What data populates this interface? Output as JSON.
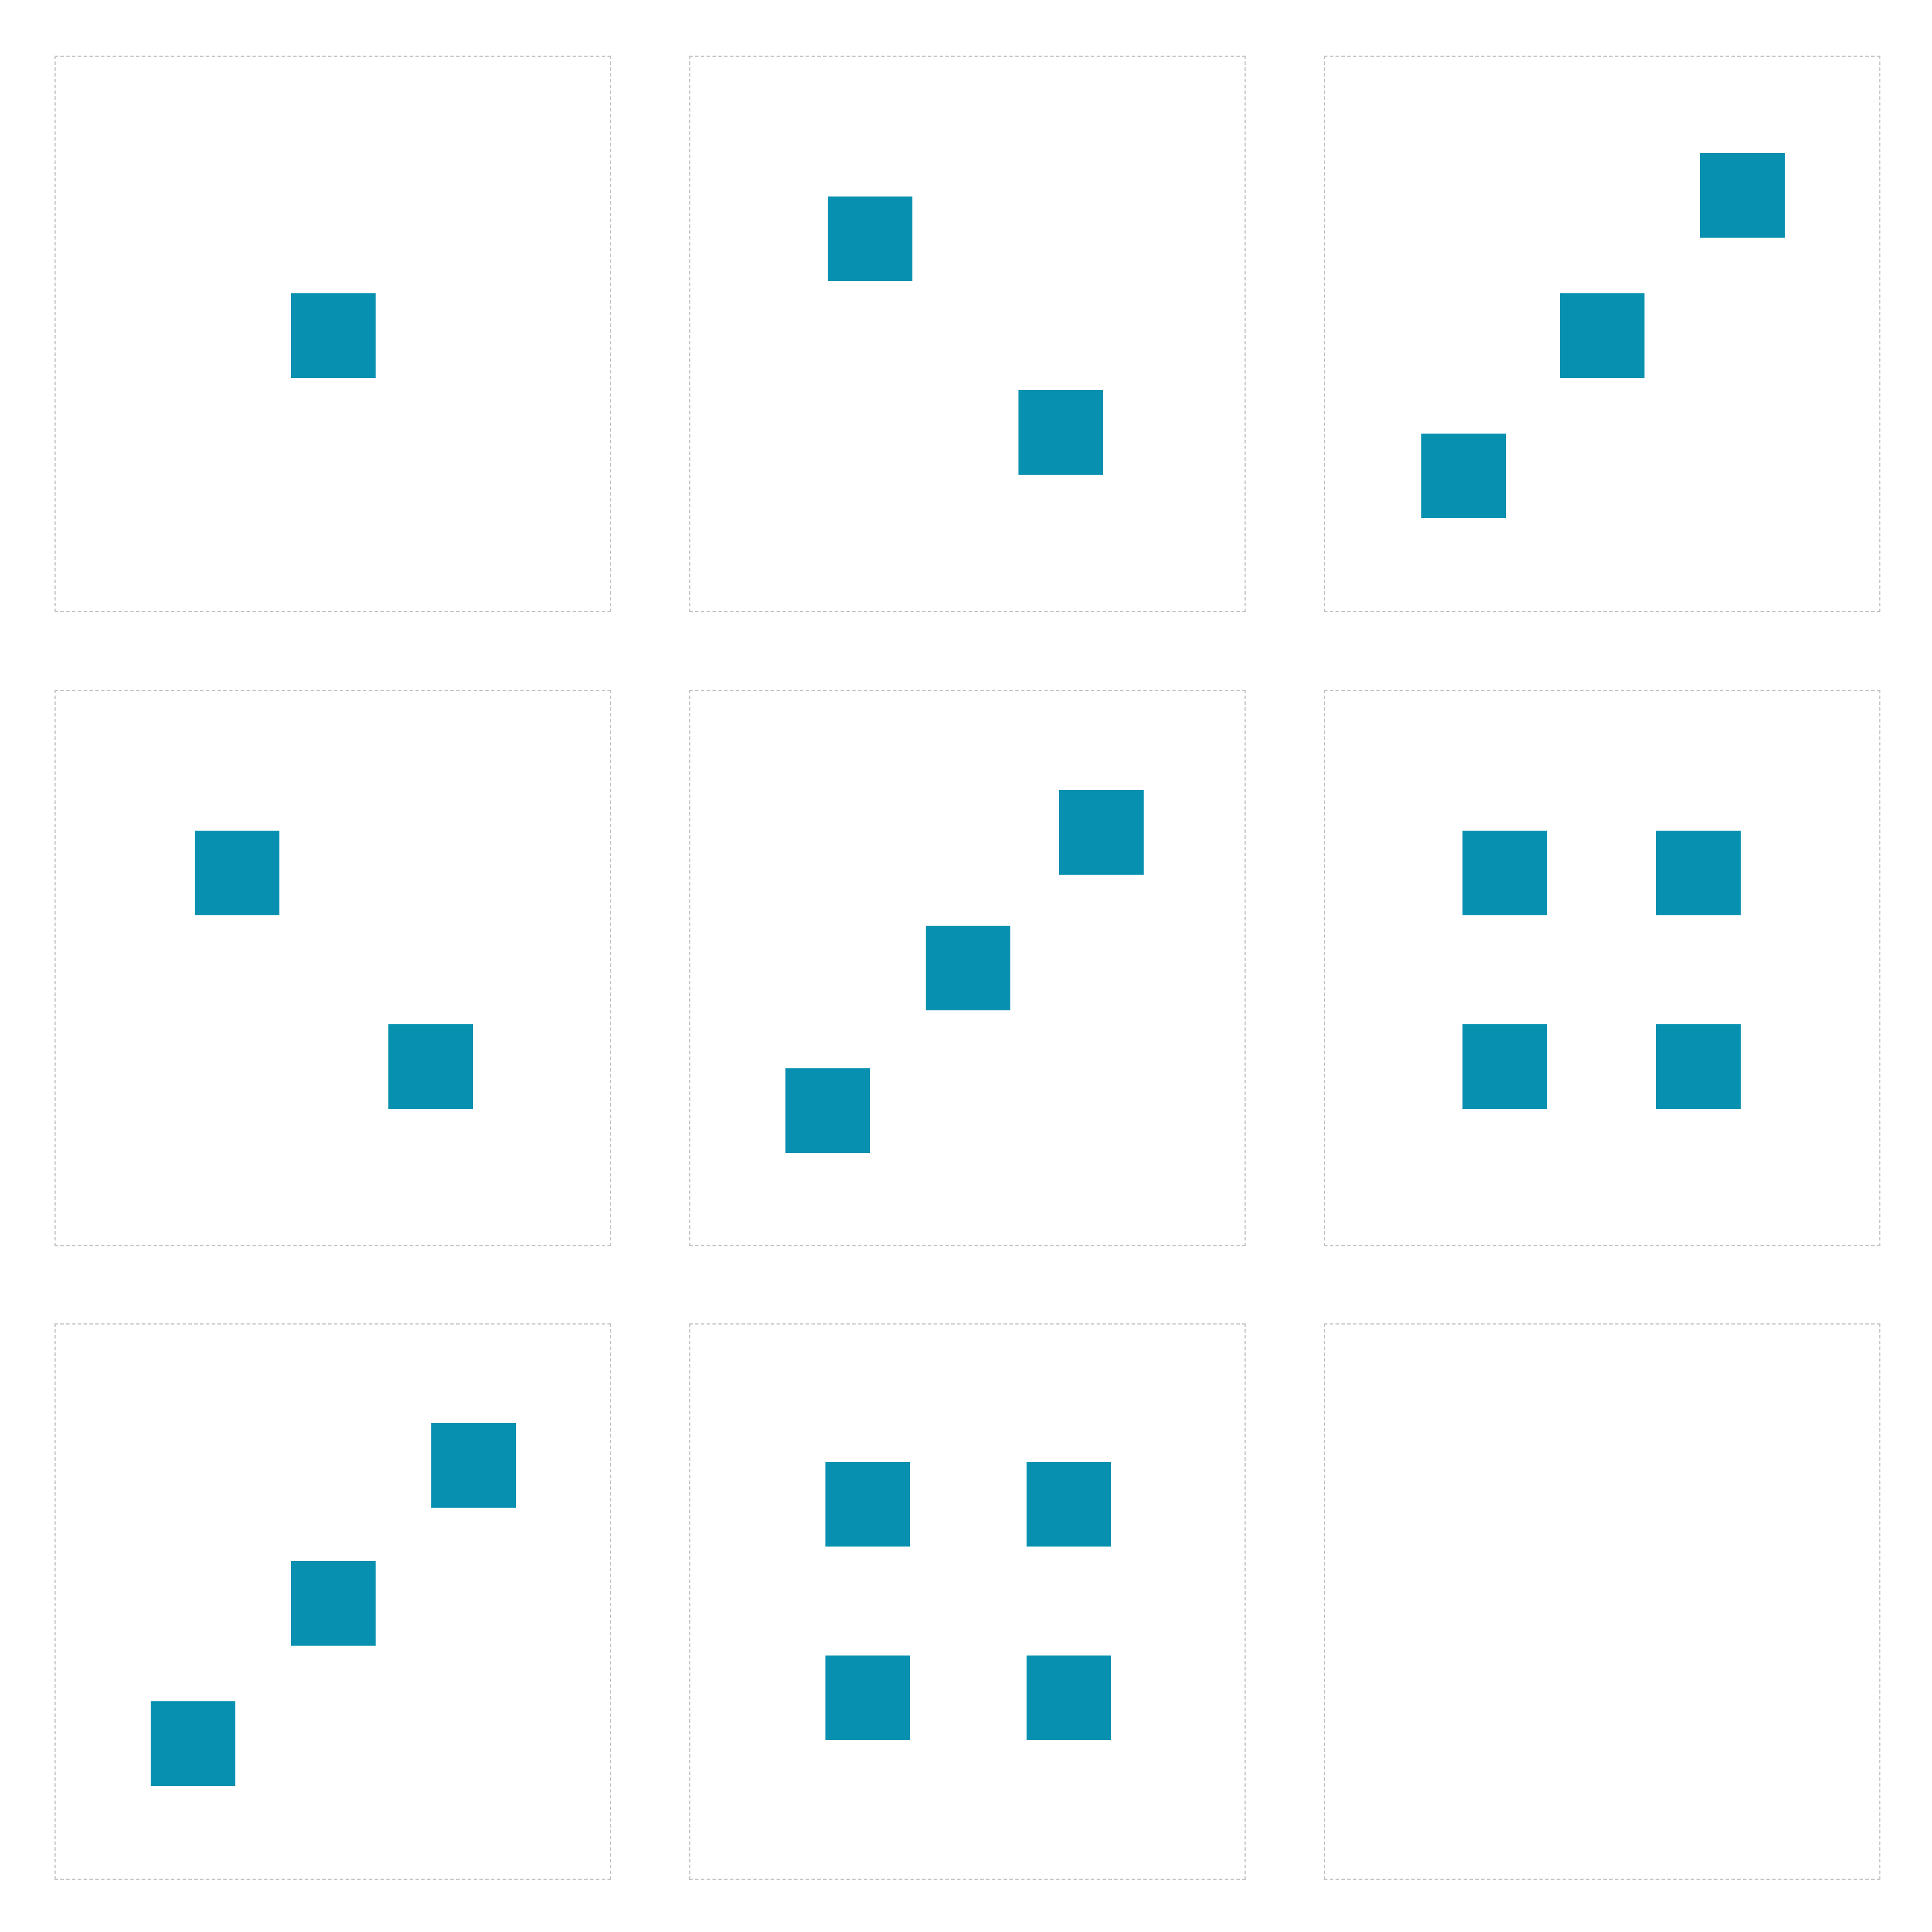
{
  "colors": {
    "square": "#0790b0",
    "panel_border": "#c4c4c4",
    "background": "#ffffff"
  },
  "panels": [
    {
      "square_count": 1,
      "squares": [
        "square"
      ]
    },
    {
      "square_count": 2,
      "squares": [
        "square",
        "square"
      ]
    },
    {
      "square_count": 3,
      "squares": [
        "square",
        "square",
        "square"
      ]
    },
    {
      "square_count": 2,
      "squares": [
        "square",
        "square"
      ]
    },
    {
      "square_count": 3,
      "squares": [
        "square",
        "square",
        "square"
      ]
    },
    {
      "square_count": 4,
      "squares": [
        "square",
        "square",
        "square",
        "square"
      ]
    },
    {
      "square_count": 3,
      "squares": [
        "square",
        "square",
        "square"
      ]
    },
    {
      "square_count": 4,
      "squares": [
        "square",
        "square",
        "square",
        "square"
      ]
    },
    {
      "square_count": 0,
      "squares": []
    }
  ]
}
